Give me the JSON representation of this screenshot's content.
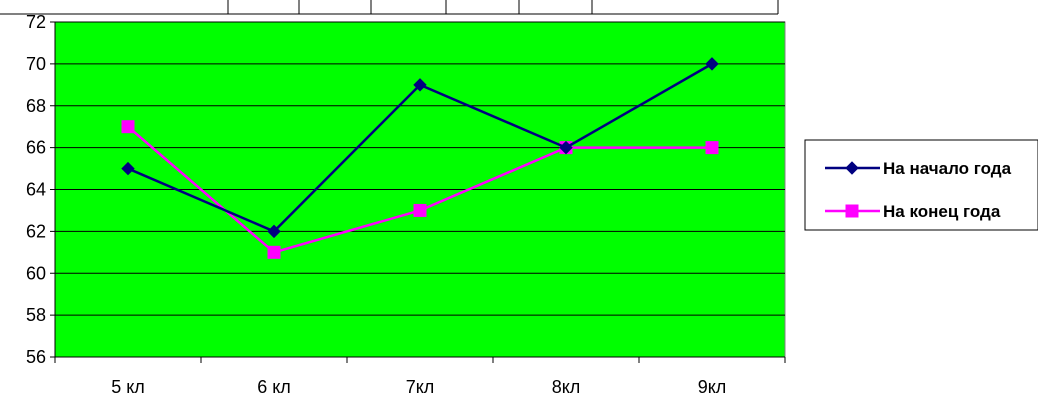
{
  "chart_data": {
    "type": "line",
    "categories": [
      "5 кл",
      "6 кл",
      "7кл",
      "8кл",
      "9кл"
    ],
    "series": [
      {
        "name": "На начало года",
        "values": [
          65,
          62,
          69,
          66,
          70
        ],
        "color": "#000080",
        "marker": "diamond"
      },
      {
        "name": "На конец года",
        "values": [
          67,
          61,
          63,
          66,
          66
        ],
        "color": "#ff00ff",
        "marker": "square"
      }
    ],
    "ylim": [
      56,
      72
    ],
    "ytick_step": 2,
    "grid": true,
    "legend": "right",
    "plot_background": "#00ff00"
  }
}
